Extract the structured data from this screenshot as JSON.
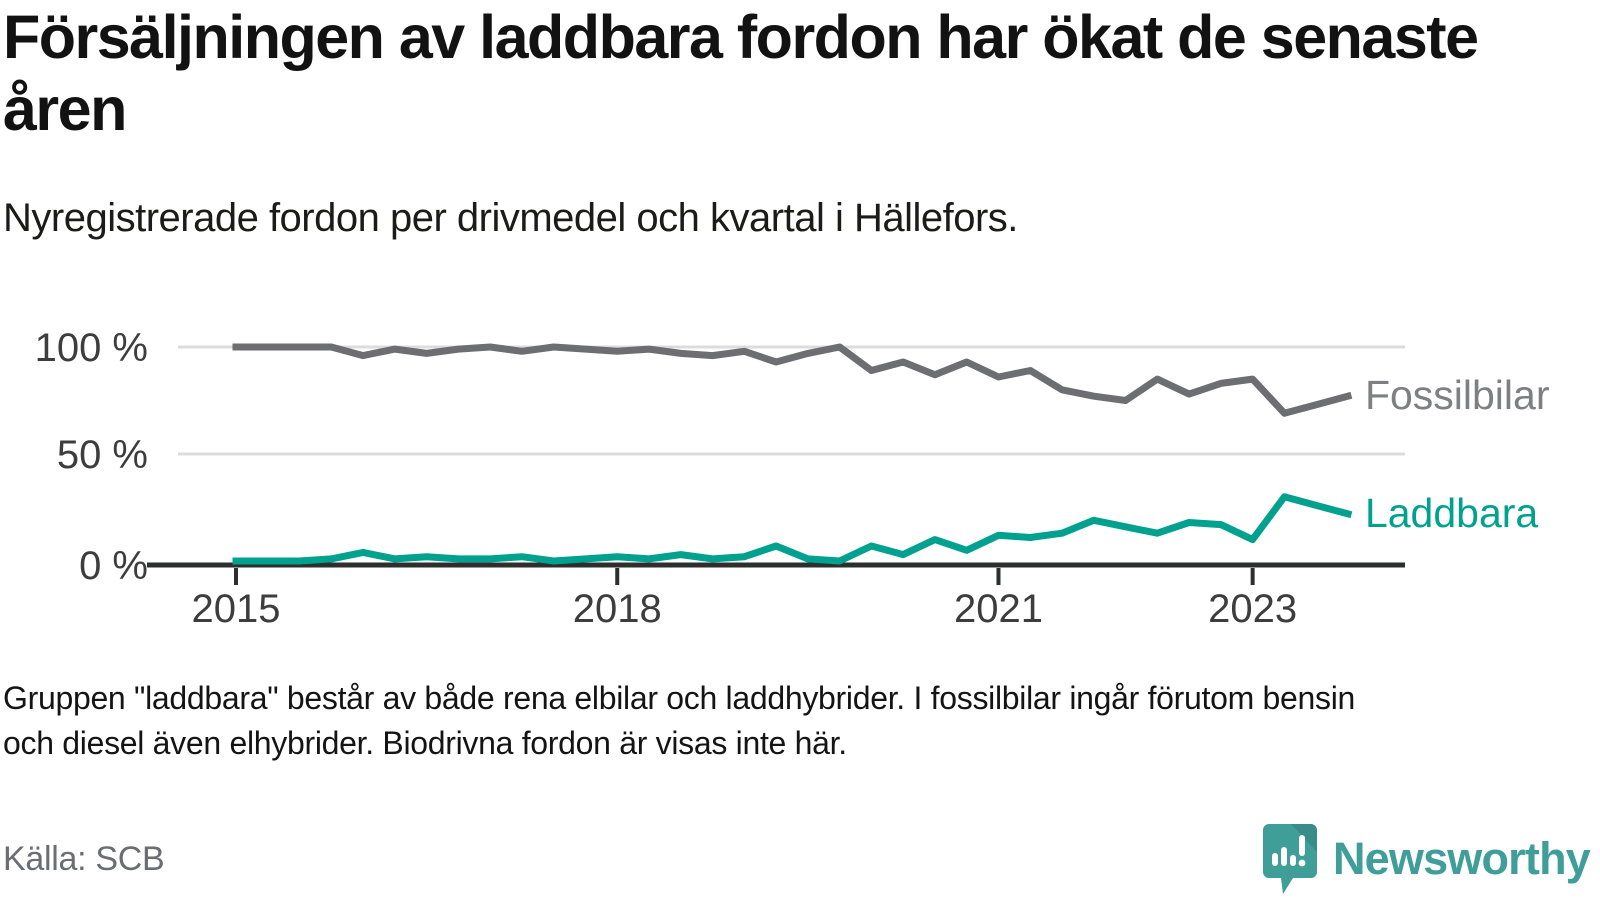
{
  "header": {
    "title": "Försäljningen av laddbara fordon har ökat de senaste åren",
    "subtitle": "Nyregistrerade fordon per drivmedel och kvartal i Hällefors."
  },
  "chart_data": {
    "type": "line",
    "x_unit": "quarter",
    "categories": [
      "2015 Q1",
      "2015 Q2",
      "2015 Q3",
      "2015 Q4",
      "2016 Q1",
      "2016 Q2",
      "2016 Q3",
      "2016 Q4",
      "2017 Q1",
      "2017 Q2",
      "2017 Q3",
      "2017 Q4",
      "2018 Q1",
      "2018 Q2",
      "2018 Q3",
      "2018 Q4",
      "2019 Q1",
      "2019 Q2",
      "2019 Q3",
      "2019 Q4",
      "2020 Q1",
      "2020 Q2",
      "2020 Q3",
      "2020 Q4",
      "2021 Q1",
      "2021 Q2",
      "2021 Q3",
      "2021 Q4",
      "2022 Q1",
      "2022 Q2",
      "2022 Q3",
      "2022 Q4",
      "2023 Q1",
      "2023 Q2",
      "2023 Q3",
      "2023 Q4"
    ],
    "series": [
      {
        "name": "Fossilbilar",
        "color": "#6d6e71",
        "label_color": "#7e7f83",
        "values": [
          100,
          100,
          100,
          100,
          96,
          99,
          97,
          99,
          100,
          98,
          100,
          99,
          98,
          99,
          97,
          96,
          98,
          93,
          97,
          100,
          89,
          93,
          87,
          93,
          86,
          89,
          80,
          77,
          75,
          85,
          78,
          83,
          85,
          69,
          73,
          77
        ]
      },
      {
        "name": "Laddbara",
        "color": "#00a18f",
        "label_color": "#00a18f",
        "values": [
          0,
          0,
          0,
          1,
          4,
          1,
          2,
          1,
          1,
          2,
          0,
          1,
          2,
          1,
          3,
          1,
          2,
          7,
          1,
          0,
          7,
          3,
          10,
          5,
          12,
          11,
          13,
          19,
          16,
          13,
          18,
          17,
          10,
          30,
          26,
          22
        ]
      }
    ],
    "ylim": [
      0,
      100
    ],
    "yticks": [
      {
        "value": 100,
        "label": "100 %"
      },
      {
        "value": 50,
        "label": "50 %"
      },
      {
        "value": 0,
        "label": "0 %"
      }
    ],
    "xticks": [
      {
        "label": "2015",
        "quarter_index": 0
      },
      {
        "label": "2018",
        "quarter_index": 12
      },
      {
        "label": "2021",
        "quarter_index": 24
      },
      {
        "label": "2023",
        "quarter_index": 32
      }
    ],
    "grid": "horizontal",
    "legend_position": "line-end-right",
    "style": {
      "grid_color": "#dcdcdd",
      "axis_color": "#2d2e2e",
      "tick_label_color": "#3d3d3d"
    }
  },
  "note": {
    "line1": "Gruppen \"laddbara\" består av både rena elbilar och laddhybrider. I fossilbilar ingår förutom bensin",
    "line2": "och diesel även elhybrider. Biodrivna fordon är visas inte här."
  },
  "source": {
    "label": "Källa: SCB"
  },
  "branding": {
    "name": "Newsworthy",
    "logo_color": "#3f9e98",
    "logo_icon": "speech-bubble-bar-chart"
  }
}
